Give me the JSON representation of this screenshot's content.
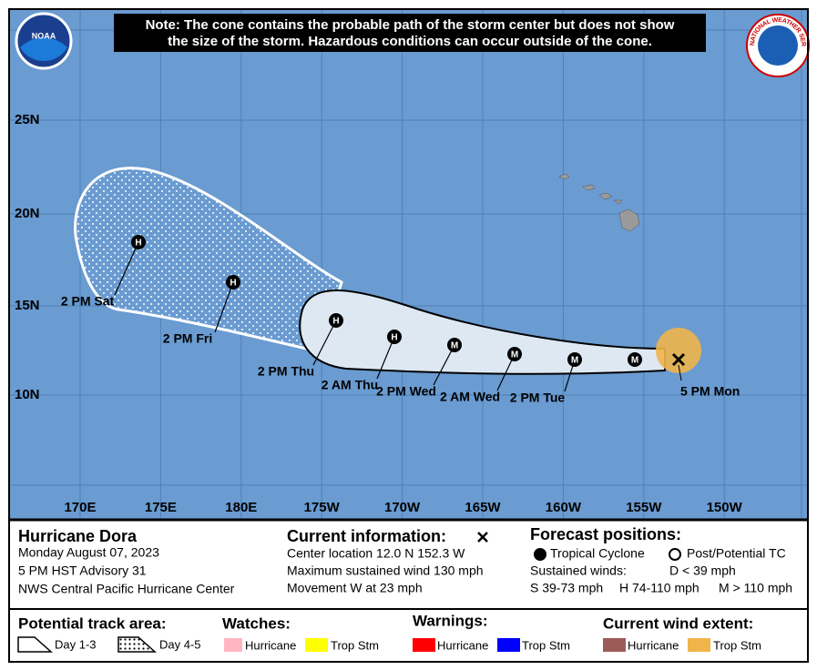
{
  "logos": {
    "noaa": "NOAA",
    "nws": "NATIONAL WEATHER SERVICE"
  },
  "note": [
    "Note: The cone contains the probable path of the storm center but does not show",
    "the size of the storm. Hazardous conditions can occur outside of the cone."
  ],
  "map": {
    "lat_labels": [
      "25N",
      "20N",
      "15N",
      "10N"
    ],
    "lon_labels": [
      "170E",
      "175E",
      "180E",
      "175W",
      "170W",
      "165W",
      "160W",
      "155W",
      "150W"
    ],
    "positions": [
      {
        "code": "H",
        "label": "2 PM Sat"
      },
      {
        "code": "H",
        "label": "2 PM Fri"
      },
      {
        "code": "H",
        "label": "2 PM Thu"
      },
      {
        "code": "H",
        "label": "2 AM Thu"
      },
      {
        "code": "M",
        "label": "2 PM Wed"
      },
      {
        "code": "M",
        "label": "2 AM Wed"
      },
      {
        "code": "M",
        "label": "2 PM Tue"
      },
      {
        "code": "M"
      }
    ],
    "current_label": "5 PM Mon"
  },
  "storm": {
    "title": "Hurricane Dora",
    "lines": [
      "Monday August 07, 2023",
      "5 PM HST Advisory 31",
      "NWS Central Pacific Hurricane Center"
    ]
  },
  "current": {
    "title": "Current information:",
    "lines": [
      "Center location 12.0 N 152.3 W",
      "Maximum sustained wind 130 mph",
      "Movement W at 23 mph"
    ]
  },
  "forecast": {
    "title": "Forecast positions:",
    "tropical": "Tropical Cyclone",
    "post": "Post/Potential TC",
    "winds": "Sustained winds:",
    "d": "D < 39 mph",
    "s": "S 39-73 mph",
    "h": "H 74-110 mph",
    "m": "M > 110 mph"
  },
  "legend": {
    "track": {
      "title": "Potential track area:",
      "day13": "Day 1-3",
      "day45": "Day 4-5"
    },
    "watches": {
      "title": "Watches:",
      "hurricane": "Hurricane",
      "trop": "Trop Stm"
    },
    "warnings": {
      "title": "Warnings:",
      "hurricane": "Hurricane",
      "trop": "Trop Stm"
    },
    "wind": {
      "title": "Current wind extent:",
      "hurricane": "Hurricane",
      "trop": "Trop Stm"
    }
  }
}
